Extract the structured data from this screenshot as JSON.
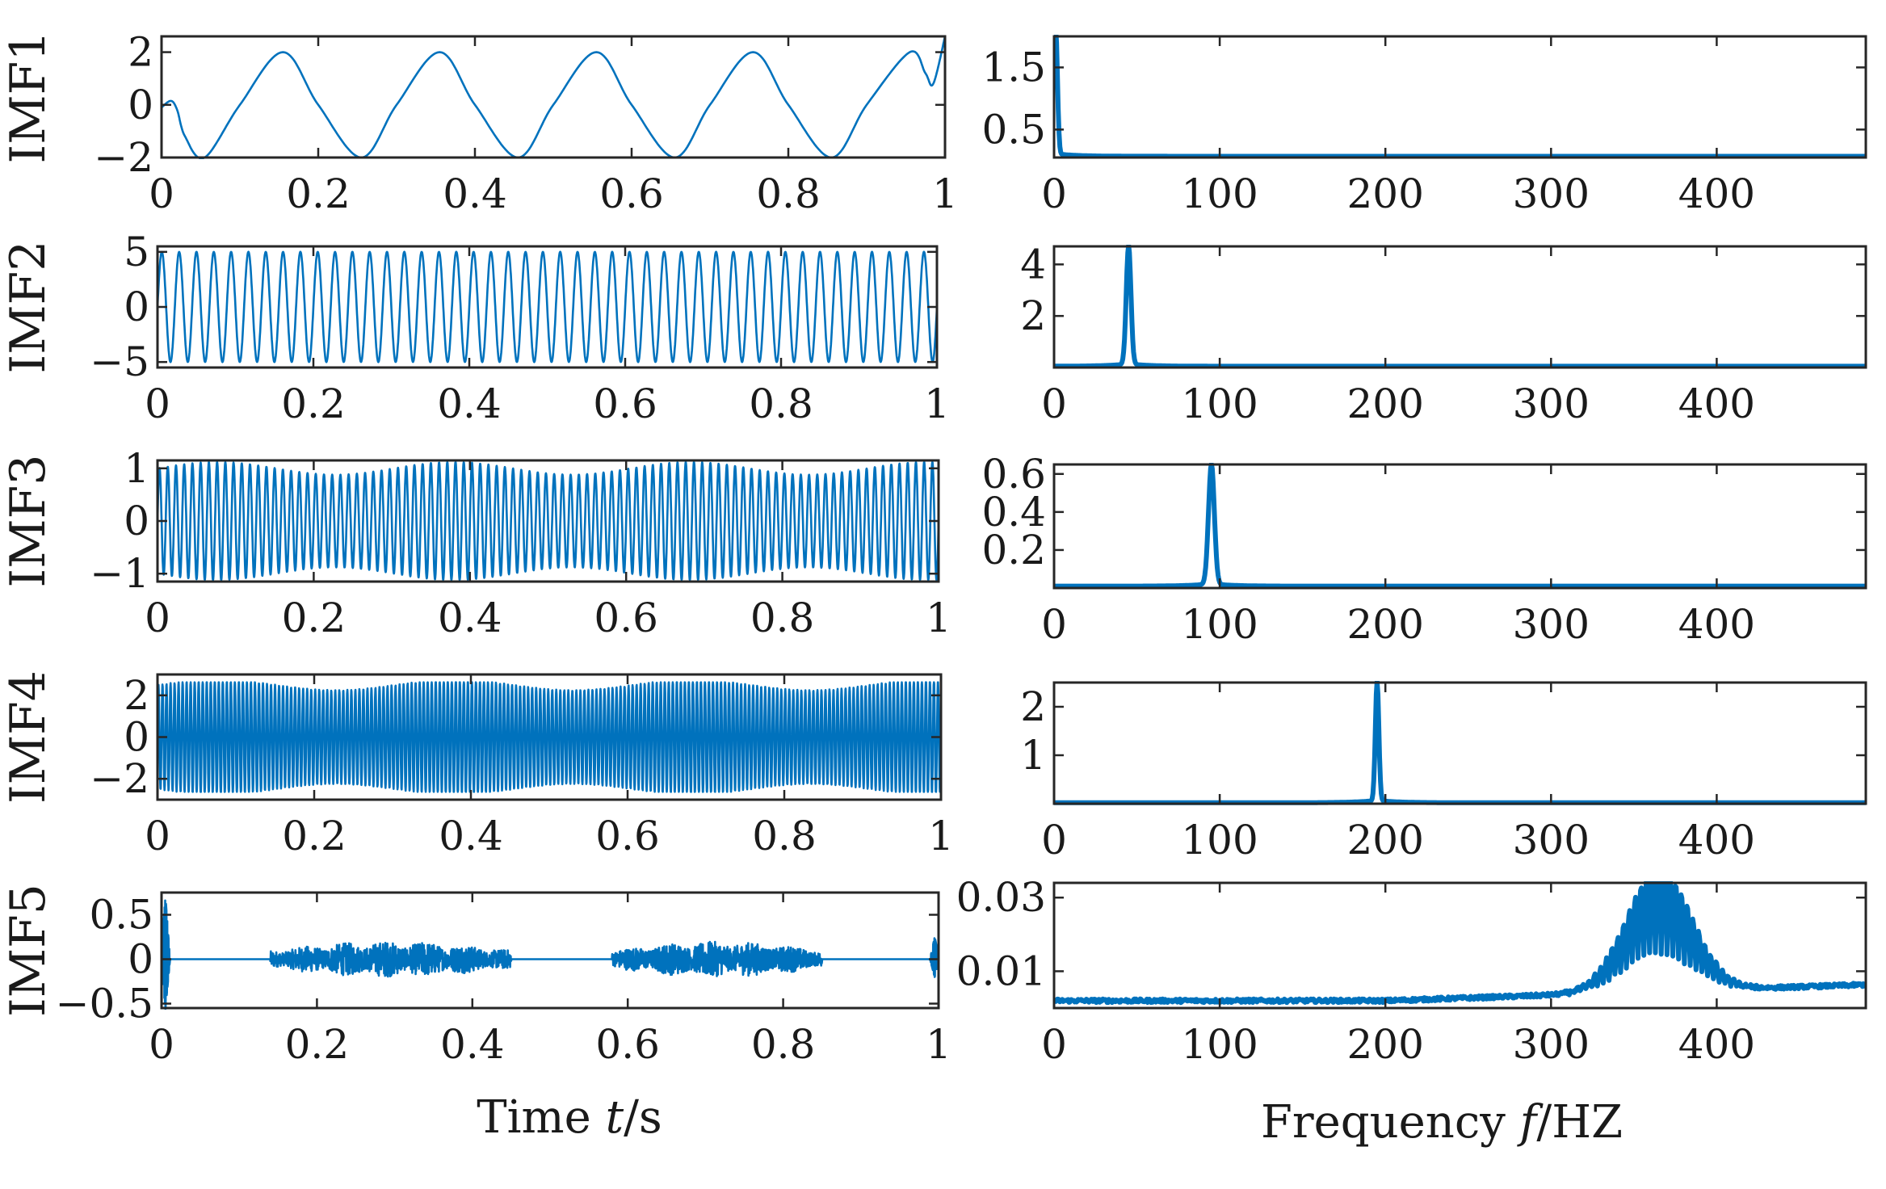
{
  "chart_data": [
    {
      "panel_id": "imf1-time",
      "type": "line",
      "ylabel": "IMF1",
      "xlabel": "",
      "xlim": [
        0,
        1
      ],
      "ylim": [
        -2,
        2.6
      ],
      "xticks": [
        0,
        0.2,
        0.4,
        0.6,
        0.8,
        1
      ],
      "xtick_labels": [
        "0",
        "0.2",
        "0.4",
        "0.6",
        "0.8",
        "1"
      ],
      "yticks": [
        -2,
        0,
        2
      ],
      "ytick_labels": [
        "−2",
        "0",
        "2"
      ],
      "series": [
        {
          "name": "IMF1",
          "color": "#0072bd",
          "x": [
            0,
            0.012,
            0.02,
            0.03,
            0.055,
            0.1,
            0.155,
            0.2,
            0.255,
            0.3,
            0.355,
            0.4,
            0.455,
            0.5,
            0.555,
            0.6,
            0.655,
            0.7,
            0.755,
            0.8,
            0.855,
            0.9,
            0.955,
            0.975,
            0.985,
            1.0
          ],
          "y": [
            -0.1,
            0.15,
            -0.2,
            -1.2,
            -2,
            0,
            2,
            0,
            -2,
            0,
            2,
            0,
            -2,
            0,
            2,
            0,
            -2,
            0,
            2,
            0,
            -2,
            0,
            2,
            1.2,
            0.8,
            2.6
          ]
        }
      ]
    },
    {
      "panel_id": "imf1-freq",
      "type": "line",
      "ylabel": "",
      "xlabel": "",
      "xlim": [
        0,
        490
      ],
      "ylim": [
        0.05,
        2.0
      ],
      "xticks": [
        0,
        100,
        200,
        300,
        400
      ],
      "xtick_labels": [
        "0",
        "100",
        "200",
        "300",
        "400"
      ],
      "yticks": [
        0.5,
        1.5
      ],
      "ytick_labels": [
        "0.5",
        "1.5"
      ],
      "series": [
        {
          "name": "spectrum",
          "color": "#0072bd",
          "peaks": [
            {
              "f": 1,
              "a": 2.0,
              "w": 1.5
            }
          ],
          "baseline": 0.07,
          "noise": 0.0
        }
      ]
    },
    {
      "panel_id": "imf2-time",
      "type": "line",
      "ylabel": "IMF2",
      "xlabel": "",
      "xlim": [
        0,
        1
      ],
      "ylim": [
        -5.5,
        5.5
      ],
      "xticks": [
        0,
        0.2,
        0.4,
        0.6,
        0.8,
        1
      ],
      "xtick_labels": [
        "0",
        "0.2",
        "0.4",
        "0.6",
        "0.8",
        "1"
      ],
      "yticks": [
        -5,
        0,
        5
      ],
      "ytick_labels": [
        "−5",
        "0",
        "5"
      ],
      "series": [
        {
          "name": "IMF2",
          "color": "#0072bd",
          "freq_hz": 45,
          "amplitude": 5,
          "am_depth": 0.0,
          "noise": 0.0
        }
      ]
    },
    {
      "panel_id": "imf2-freq",
      "type": "line",
      "ylabel": "",
      "xlabel": "",
      "xlim": [
        0,
        490
      ],
      "ylim": [
        0.0,
        4.7
      ],
      "xticks": [
        0,
        100,
        200,
        300,
        400
      ],
      "xtick_labels": [
        "0",
        "100",
        "200",
        "300",
        "400"
      ],
      "yticks": [
        2,
        4
      ],
      "ytick_labels": [
        "2",
        "4"
      ],
      "series": [
        {
          "name": "spectrum",
          "color": "#0072bd",
          "peaks": [
            {
              "f": 45,
              "a": 4.6,
              "w": 2
            }
          ],
          "baseline": 0.05,
          "noise": 0.0
        }
      ]
    },
    {
      "panel_id": "imf3-time",
      "type": "line",
      "ylabel": "IMF3",
      "xlabel": "",
      "xlim": [
        0,
        1
      ],
      "ylim": [
        -1.15,
        1.15
      ],
      "xticks": [
        0,
        0.2,
        0.4,
        0.6,
        0.8,
        1
      ],
      "xtick_labels": [
        "0",
        "0.2",
        "0.4",
        "0.6",
        "0.8",
        "1"
      ],
      "yticks": [
        -1,
        0,
        1
      ],
      "ytick_labels": [
        "−1",
        "0",
        "1"
      ],
      "series": [
        {
          "name": "IMF3",
          "color": "#0072bd",
          "freq_hz": 95,
          "amplitude": 1.0,
          "am_depth": 0.12,
          "noise": 0.0
        }
      ]
    },
    {
      "panel_id": "imf3-freq",
      "type": "line",
      "ylabel": "",
      "xlabel": "",
      "xlim": [
        0,
        490
      ],
      "ylim": [
        0.0,
        0.65
      ],
      "xticks": [
        0,
        100,
        200,
        300,
        400
      ],
      "xtick_labels": [
        "0",
        "100",
        "200",
        "300",
        "400"
      ],
      "yticks": [
        0.2,
        0.4,
        0.6
      ],
      "ytick_labels": [
        "0.2",
        "0.4",
        "0.6"
      ],
      "series": [
        {
          "name": "spectrum",
          "color": "#0072bd",
          "peaks": [
            {
              "f": 95,
              "a": 0.63,
              "w": 2.5
            }
          ],
          "baseline": 0.01,
          "noise": 0.0
        }
      ]
    },
    {
      "panel_id": "imf4-time",
      "type": "line",
      "ylabel": "IMF4",
      "xlabel": "",
      "xlim": [
        0,
        1
      ],
      "ylim": [
        -3,
        3
      ],
      "xticks": [
        0,
        0.2,
        0.4,
        0.6,
        0.8,
        1
      ],
      "xtick_labels": [
        "0",
        "0.2",
        "0.4",
        "0.6",
        "0.8",
        "1"
      ],
      "yticks": [
        -2,
        0,
        2
      ],
      "ytick_labels": [
        "−2",
        "0",
        "2"
      ],
      "series": [
        {
          "name": "IMF4",
          "color": "#0072bd",
          "freq_hz": 195,
          "amplitude": 2.5,
          "am_depth": 0.1,
          "noise": 0.0
        }
      ]
    },
    {
      "panel_id": "imf4-freq",
      "type": "line",
      "ylabel": "",
      "xlabel": "",
      "xlim": [
        0,
        490
      ],
      "ylim": [
        0.0,
        2.5
      ],
      "xticks": [
        0,
        100,
        200,
        300,
        400
      ],
      "xtick_labels": [
        "0",
        "100",
        "200",
        "300",
        "400"
      ],
      "yticks": [
        1,
        2
      ],
      "ytick_labels": [
        "1",
        "2"
      ],
      "series": [
        {
          "name": "spectrum",
          "color": "#0072bd",
          "peaks": [
            {
              "f": 195,
              "a": 2.45,
              "w": 1.5
            }
          ],
          "baseline": 0.02,
          "noise": 0.0
        }
      ]
    },
    {
      "panel_id": "imf5-time",
      "type": "line",
      "ylabel": "IMF5",
      "xlabel": "Time t/s",
      "xlim": [
        0,
        1
      ],
      "ylim": [
        -0.55,
        0.75
      ],
      "xticks": [
        0,
        0.2,
        0.4,
        0.6,
        0.8,
        1
      ],
      "xtick_labels": [
        "0",
        "0.2",
        "0.4",
        "0.6",
        "0.8",
        "1"
      ],
      "yticks": [
        -0.5,
        0,
        0.5
      ],
      "ytick_labels": [
        "−0.5",
        "0",
        "0.5"
      ],
      "series": [
        {
          "name": "IMF5",
          "color": "#0072bd",
          "bursts": [
            {
              "t0": 0.14,
              "t1": 0.45,
              "a": 0.2
            },
            {
              "t0": 0.58,
              "t1": 0.85,
              "a": 0.2
            }
          ],
          "spikes": [
            {
              "t": 0.005,
              "a": 0.7
            },
            {
              "t": 0.995,
              "a": 0.25
            }
          ]
        }
      ]
    },
    {
      "panel_id": "imf5-freq",
      "type": "line",
      "ylabel": "",
      "xlabel": "Frequency f/HZ",
      "xlim": [
        0,
        490
      ],
      "ylim": [
        0.0,
        0.034
      ],
      "xticks": [
        0,
        100,
        200,
        300,
        400
      ],
      "xtick_labels": [
        "0",
        "100",
        "200",
        "300",
        "400"
      ],
      "yticks": [
        0.01,
        0.03
      ],
      "ytick_labels": [
        "0.01",
        "0.03"
      ],
      "series": [
        {
          "name": "spectrum",
          "color": "#0072bd",
          "band": {
            "f0": 330,
            "f1": 400,
            "a": 0.033
          },
          "baseline": 0.0015,
          "noise": 0.001
        }
      ]
    }
  ],
  "labels": {
    "time_axis": {
      "prefix": "Time ",
      "var": "t",
      "suffix": "/s"
    },
    "freq_axis": {
      "prefix": "Frequency ",
      "var": "f",
      "suffix": "/HZ"
    }
  }
}
